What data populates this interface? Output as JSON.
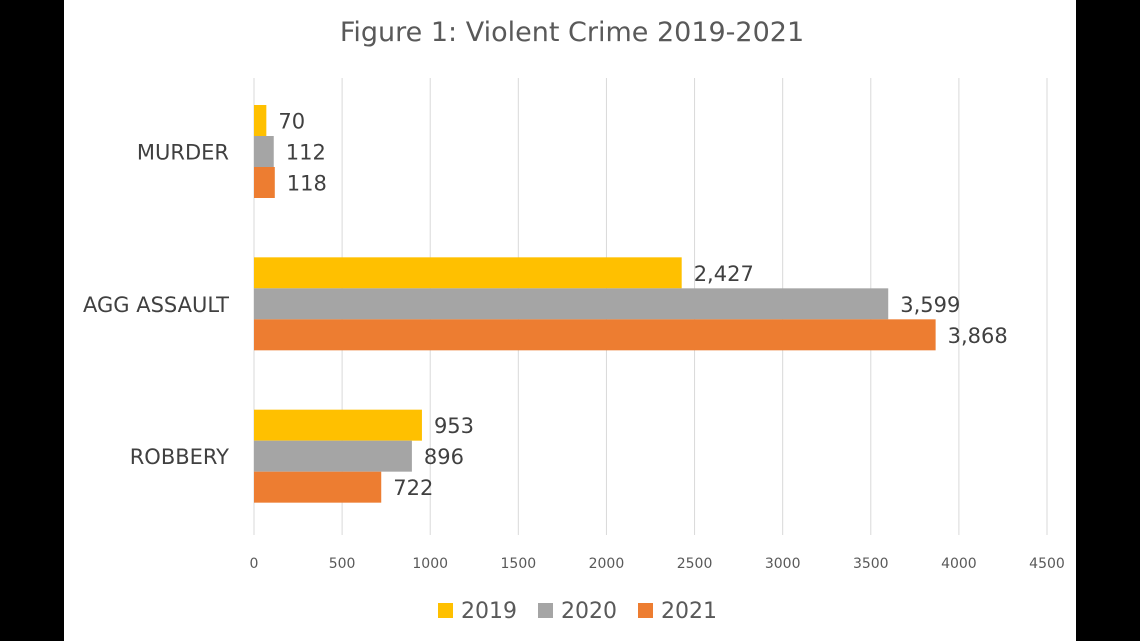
{
  "chart_data": {
    "type": "bar",
    "orientation": "horizontal",
    "title": "Figure 1: Violent Crime 2019-2021",
    "categories": [
      "MURDER",
      "AGG ASSAULT",
      "ROBBERY"
    ],
    "series": [
      {
        "name": "2019",
        "color": "#ffc000",
        "values": [
          70,
          2427,
          953
        ],
        "labels": [
          "70",
          "2,427",
          "953"
        ]
      },
      {
        "name": "2020",
        "color": "#a5a5a5",
        "values": [
          112,
          3599,
          896
        ],
        "labels": [
          "112",
          "3,599",
          "896"
        ]
      },
      {
        "name": "2021",
        "color": "#ed7d31",
        "values": [
          118,
          3868,
          722
        ],
        "labels": [
          "118",
          "3,868",
          "722"
        ]
      }
    ],
    "xlim": [
      0,
      4500
    ],
    "xticks": [
      "0",
      "500",
      "1000",
      "1500",
      "2000",
      "2500",
      "3000",
      "3500",
      "4000",
      "4500"
    ],
    "grid": true,
    "legend_position": "bottom"
  }
}
